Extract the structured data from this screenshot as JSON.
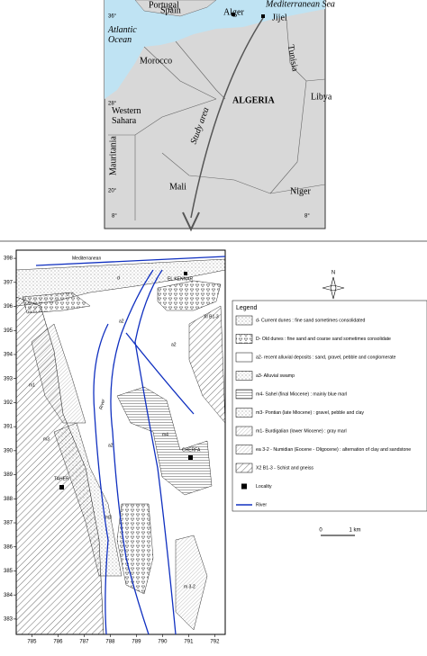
{
  "inset_map": {
    "labels": {
      "portugal": "Portugal",
      "spain": "Spain",
      "alger": "Alger",
      "jijel": "Jijel",
      "mediterranean_sea": "Mediterranean Sea",
      "atlantic_ocean": "Atlantic\nOcean",
      "tunisia": "Tunisia",
      "morocco": "Morocco",
      "algeria": "ALGERIA",
      "libya": "Libya",
      "western_sahara": "Western\nSahara",
      "study_area": "Study area",
      "mauritania": "Mauritania",
      "mali": "Mali",
      "niger": "Niger"
    },
    "degrees": {
      "lat36": "36°",
      "lat28": "28°",
      "lat20": "20°",
      "lat8": "8°",
      "lon8": "8°"
    }
  },
  "geology_map": {
    "xlim": [
      784.4,
      792.4
    ],
    "ylim": [
      382.36,
      398.34
    ],
    "xticks": [
      785,
      786,
      787,
      788,
      789,
      790,
      791,
      792
    ],
    "yticks": [
      398,
      397,
      396,
      395,
      394,
      393,
      392,
      391,
      390,
      389,
      388,
      387,
      386,
      385,
      384,
      383
    ],
    "labels": {
      "mediterranean": "Mediterranean",
      "d": "d",
      "el_kennar": "EL KENNAR",
      "a2_top": "a2",
      "a2_right": "a2",
      "a2_mid": "a2",
      "m1_left": "m1",
      "m3_left": "m3",
      "m3_mid": "m3",
      "m4": "m4",
      "taher": "TAHER",
      "cherfa": "CHERFA",
      "river": "River",
      "xi": "XI B1-3",
      "m32": "m 3-2"
    },
    "north": "N",
    "scale": {
      "zero": "0",
      "one": "1 km"
    },
    "legend": {
      "title": "Legend",
      "items": [
        "d- Current dunes : fine sand sometimes consolidated",
        "D- Old dunes : fine sand and coarse sand sometimes consolidate",
        "a2- recent alluvial deposits : sand, gravel, pebble and conglomerate",
        "a3- Alluvial swamp",
        "m4- Sahel (final Miocene) : mainly blue marl",
        "m3- Pontian (late Miocene) : gravel, pebble and clay",
        "m1- Burdigalian (lower Miocene) : gray marl",
        "ea 3-2 - Numidian (Eocene - Oligocene) : alternation of clay and sandstone",
        "X2 B1-3 - Schist and gneiss",
        "Locality",
        "River"
      ]
    }
  }
}
